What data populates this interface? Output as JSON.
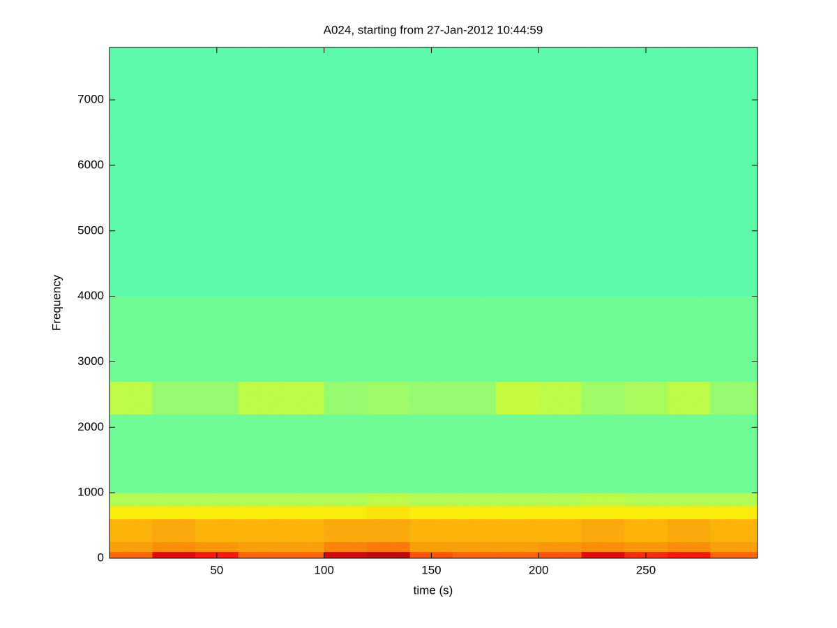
{
  "chart_data": {
    "type": "spectrogram",
    "title": "A024, starting from 27-Jan-2012 10:44:59",
    "x_label": "time (s)",
    "y_label": "Frequency",
    "xlim": [
      0,
      302
    ],
    "ylim": [
      0,
      7800
    ],
    "xticks": [
      50,
      100,
      150,
      200,
      250
    ],
    "yticks": [
      0,
      1000,
      2000,
      3000,
      4000,
      5000,
      6000,
      7000
    ],
    "colormap": "jet",
    "x": [
      0,
      20,
      40,
      60,
      80,
      100,
      120,
      140,
      160,
      180,
      200,
      220,
      240,
      260,
      280,
      302
    ],
    "y": [
      0,
      100,
      250,
      600,
      800,
      1000,
      2200,
      2700,
      4000,
      7800
    ],
    "values": [
      [
        0.78,
        0.9,
        0.86,
        0.78,
        0.78,
        0.92,
        0.94,
        0.8,
        0.78,
        0.78,
        0.8,
        0.9,
        0.84,
        0.86,
        0.78
      ],
      [
        0.72,
        0.74,
        0.73,
        0.72,
        0.72,
        0.75,
        0.76,
        0.72,
        0.72,
        0.72,
        0.73,
        0.74,
        0.73,
        0.74,
        0.72
      ],
      [
        0.7,
        0.71,
        0.7,
        0.7,
        0.7,
        0.71,
        0.71,
        0.7,
        0.7,
        0.7,
        0.7,
        0.71,
        0.7,
        0.71,
        0.7
      ],
      [
        0.64,
        0.64,
        0.64,
        0.64,
        0.64,
        0.64,
        0.65,
        0.64,
        0.64,
        0.64,
        0.64,
        0.64,
        0.64,
        0.64,
        0.64
      ],
      [
        0.55,
        0.55,
        0.55,
        0.55,
        0.55,
        0.55,
        0.56,
        0.55,
        0.55,
        0.55,
        0.55,
        0.56,
        0.55,
        0.55,
        0.55
      ],
      [
        0.48,
        0.48,
        0.48,
        0.48,
        0.48,
        0.48,
        0.48,
        0.48,
        0.48,
        0.48,
        0.48,
        0.48,
        0.48,
        0.48,
        0.48
      ],
      [
        0.56,
        0.52,
        0.52,
        0.56,
        0.56,
        0.52,
        0.53,
        0.52,
        0.52,
        0.57,
        0.56,
        0.53,
        0.54,
        0.56,
        0.52
      ],
      [
        0.48,
        0.48,
        0.48,
        0.48,
        0.48,
        0.48,
        0.48,
        0.48,
        0.48,
        0.48,
        0.48,
        0.48,
        0.48,
        0.48,
        0.48
      ],
      [
        0.46,
        0.46,
        0.46,
        0.46,
        0.46,
        0.46,
        0.46,
        0.46,
        0.46,
        0.46,
        0.46,
        0.46,
        0.46,
        0.46,
        0.46
      ]
    ]
  }
}
